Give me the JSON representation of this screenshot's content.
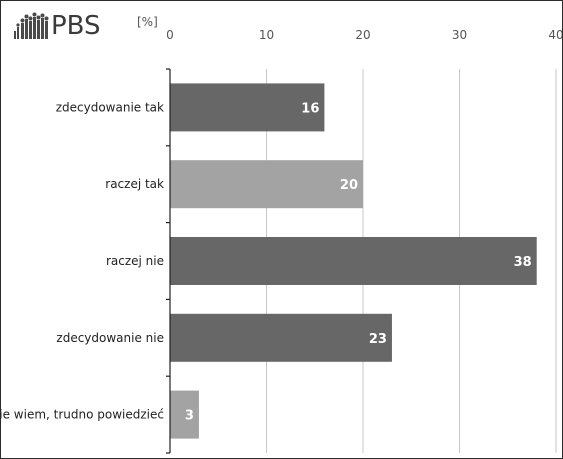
{
  "logo": {
    "text": "PBS",
    "icon": "crowd-silhouette-icon"
  },
  "unit": "[%]",
  "colors": {
    "dark": "#676767",
    "light": "#a3a3a3",
    "grid": "#c8c8c8",
    "axis": "#222222"
  },
  "chart_data": {
    "type": "bar",
    "orientation": "horizontal",
    "title": "",
    "xlabel": "",
    "ylabel": "",
    "xlim": [
      0,
      40
    ],
    "ticks": [
      0,
      10,
      20,
      30,
      40
    ],
    "tick_labels": [
      "0",
      "10",
      "20",
      "30",
      "40"
    ],
    "axis_position": "top",
    "grid": true,
    "categories": [
      "zdecydowanie tak",
      "raczej tak",
      "raczej nie",
      "zdecydowanie nie",
      "nie wiem, trudno powiedzieć"
    ],
    "values": [
      16,
      20,
      38,
      23,
      3
    ],
    "data_labels": [
      "16",
      "20",
      "38",
      "23",
      "3"
    ],
    "bar_colors": [
      "#676767",
      "#a3a3a3",
      "#676767",
      "#676767",
      "#a3a3a3"
    ]
  }
}
